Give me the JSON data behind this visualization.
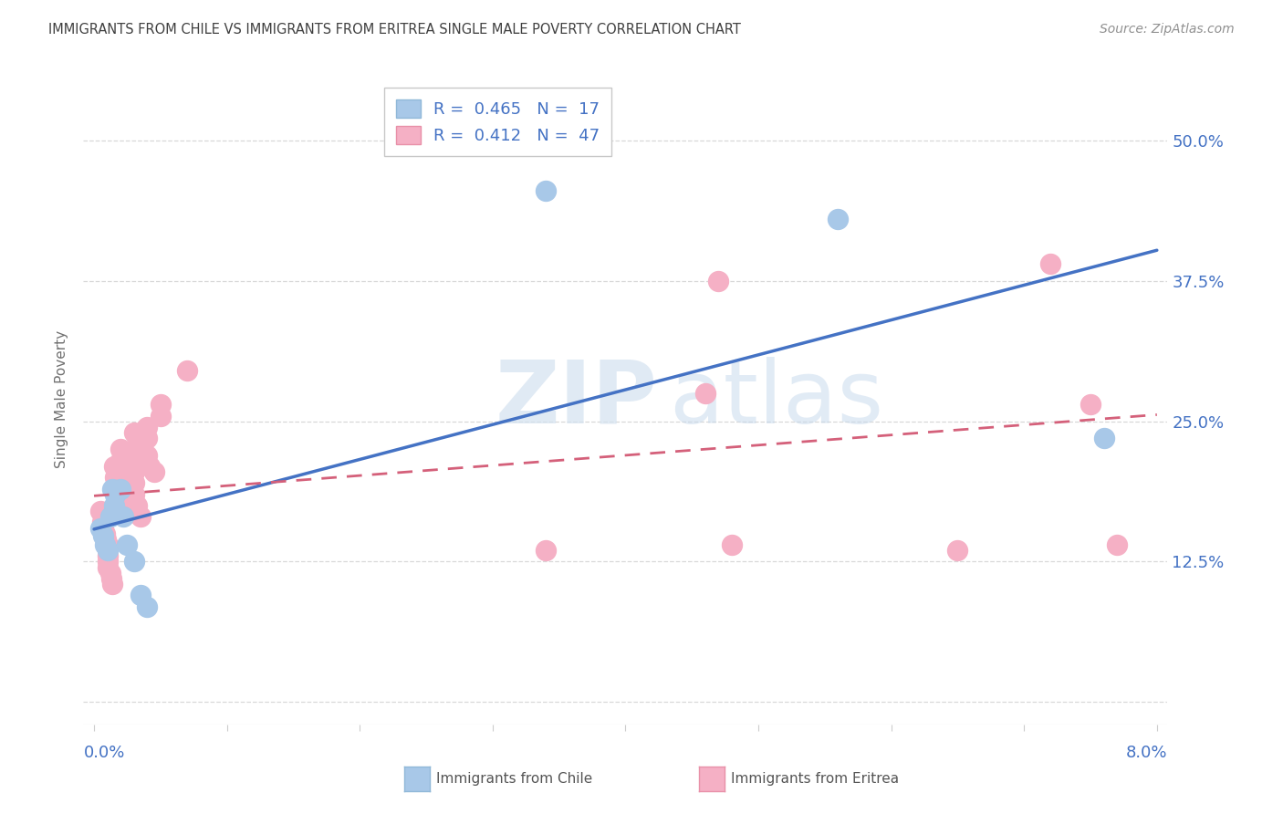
{
  "title": "IMMIGRANTS FROM CHILE VS IMMIGRANTS FROM ERITREA SINGLE MALE POVERTY CORRELATION CHART",
  "source": "Source: ZipAtlas.com",
  "ylabel": "Single Male Poverty",
  "legend_chile_r": "0.465",
  "legend_chile_n": "17",
  "legend_eritrea_r": "0.412",
  "legend_eritrea_n": "47",
  "legend_label_chile": "Immigrants from Chile",
  "legend_label_eritrea": "Immigrants from Eritrea",
  "chile_color": "#a8c8e8",
  "chile_edge_color": "#a8c8e8",
  "eritrea_color": "#f5b0c5",
  "eritrea_edge_color": "#f5b0c5",
  "chile_line_color": "#4472c4",
  "eritrea_line_color": "#d4607a",
  "title_color": "#404040",
  "source_color": "#909090",
  "axis_color": "#4472c4",
  "ylabel_color": "#707070",
  "background_color": "#ffffff",
  "grid_color": "#d8d8d8",
  "xmin": 0.0,
  "xmax": 0.08,
  "ymin": -0.02,
  "ymax": 0.56,
  "ytick_vals": [
    0.0,
    0.125,
    0.25,
    0.375,
    0.5
  ],
  "ytick_labels": [
    "",
    "12.5%",
    "25.0%",
    "37.5%",
    "50.0%"
  ],
  "chile_x": [
    0.0005,
    0.0007,
    0.0008,
    0.001,
    0.0012,
    0.0014,
    0.0015,
    0.0016,
    0.002,
    0.0022,
    0.0025,
    0.003,
    0.0035,
    0.004,
    0.034,
    0.056,
    0.076
  ],
  "chile_y": [
    0.155,
    0.148,
    0.14,
    0.135,
    0.165,
    0.19,
    0.175,
    0.185,
    0.19,
    0.165,
    0.14,
    0.125,
    0.095,
    0.085,
    0.455,
    0.43,
    0.235
  ],
  "eritrea_x": [
    0.0005,
    0.0006,
    0.0007,
    0.0008,
    0.0009,
    0.001,
    0.001,
    0.001,
    0.001,
    0.001,
    0.0012,
    0.0013,
    0.0014,
    0.0015,
    0.0016,
    0.0017,
    0.0018,
    0.002,
    0.002,
    0.002,
    0.0022,
    0.0023,
    0.0025,
    0.003,
    0.003,
    0.003,
    0.003,
    0.003,
    0.003,
    0.0032,
    0.0035,
    0.004,
    0.004,
    0.004,
    0.0042,
    0.0045,
    0.005,
    0.005,
    0.007,
    0.034,
    0.046,
    0.047,
    0.048,
    0.065,
    0.072,
    0.075,
    0.077
  ],
  "eritrea_y": [
    0.17,
    0.16,
    0.155,
    0.15,
    0.145,
    0.14,
    0.135,
    0.13,
    0.125,
    0.12,
    0.115,
    0.11,
    0.105,
    0.21,
    0.2,
    0.19,
    0.185,
    0.225,
    0.215,
    0.205,
    0.195,
    0.185,
    0.175,
    0.24,
    0.225,
    0.215,
    0.205,
    0.195,
    0.185,
    0.175,
    0.165,
    0.245,
    0.235,
    0.22,
    0.21,
    0.205,
    0.265,
    0.255,
    0.295,
    0.135,
    0.275,
    0.375,
    0.14,
    0.135,
    0.39,
    0.265,
    0.14
  ]
}
